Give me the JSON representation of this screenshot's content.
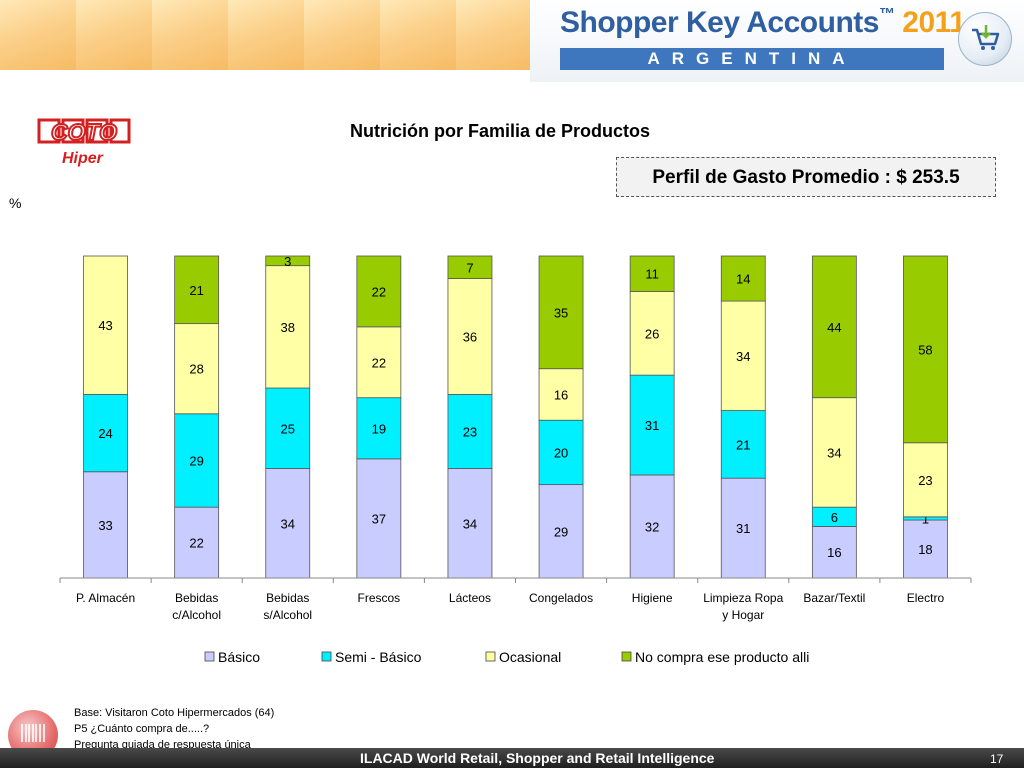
{
  "header": {
    "brand_title": "Shopper Key Accounts",
    "brand_tm": "™",
    "brand_year": "2011",
    "country": "ARGENTINA"
  },
  "logo": {
    "brand": "COTO",
    "subtitle": "Hiper"
  },
  "chart_title": "Nutrición por Familia de Productos",
  "profile_label": "Perfil de Gasto Promedio : $ 253.5",
  "y_unit_label": "%",
  "colors": {
    "basico": "#c9ccff",
    "semi_basico": "#00f0ff",
    "ocasional": "#ffffa6",
    "no_compra": "#99cc00"
  },
  "chart_data": {
    "type": "bar",
    "stacked": true,
    "title": "Nutrición por Familia de Productos",
    "ylabel": "%",
    "ylim": [
      0,
      100
    ],
    "categories": [
      [
        "P. Almacén"
      ],
      [
        "Bebidas",
        "c/Alcohol"
      ],
      [
        "Bebidas",
        "s/Alcohol"
      ],
      [
        "Frescos"
      ],
      [
        "Lácteos"
      ],
      [
        "Congelados"
      ],
      [
        "Higiene"
      ],
      [
        "Limpieza Ropa",
        "y Hogar"
      ],
      [
        "Bazar/Textil"
      ],
      [
        "Electro"
      ]
    ],
    "series": [
      {
        "name": "Básico",
        "color": "#c9ccff",
        "values": [
          33,
          22,
          34,
          37,
          34,
          29,
          32,
          31,
          16,
          18
        ]
      },
      {
        "name": "Semi - Básico",
        "color": "#00f0ff",
        "values": [
          24,
          29,
          25,
          19,
          23,
          20,
          31,
          21,
          6,
          1
        ]
      },
      {
        "name": "Ocasional",
        "color": "#ffffa6",
        "values": [
          43,
          28,
          38,
          22,
          36,
          16,
          26,
          34,
          34,
          23
        ]
      },
      {
        "name": "No compra ese producto alli",
        "color": "#99cc00",
        "values": [
          0,
          21,
          3,
          22,
          7,
          35,
          11,
          14,
          44,
          58
        ]
      }
    ],
    "legend_position": "bottom"
  },
  "notes": [
    "Base: Visitaron Coto Hipermercados (64)",
    "P5 ¿Cuánto compra de.....?",
    "Pregunta guiada de respuesta única"
  ],
  "footer": {
    "text": "ILACAD World Retail, Shopper and Retail Intelligence",
    "page": "17"
  }
}
